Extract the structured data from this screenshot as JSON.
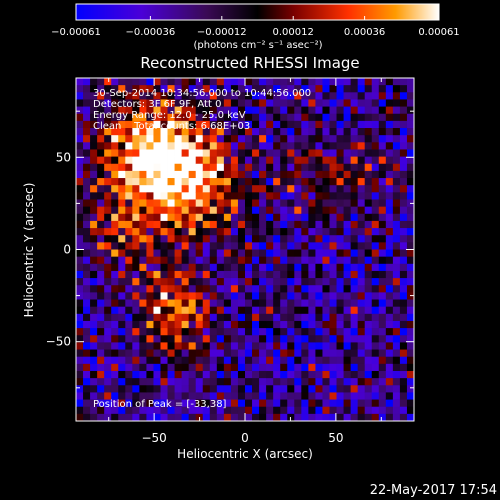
{
  "chart_data": {
    "type": "heatmap",
    "title": "Reconstructed RHESSI Image",
    "xlabel": "Heliocentric X (arcsec)",
    "ylabel": "Heliocentric Y (arcsec)",
    "xlim": [
      -93,
      93
    ],
    "ylim": [
      -93,
      93
    ],
    "x_ticks": [
      -50,
      0,
      50
    ],
    "y_ticks": [
      -50,
      0,
      50
    ],
    "x_tick_labels": [
      "−50",
      "0",
      "50"
    ],
    "y_tick_labels": [
      "−50",
      "0",
      "50"
    ],
    "colorbar": {
      "units": "(photons cm⁻² s⁻¹ asec⁻²)",
      "min": -0.00061,
      "max": 0.00061,
      "ticks": [
        -0.00061,
        -0.00036,
        -0.00012,
        0.00012,
        0.00036,
        0.00061
      ],
      "tick_labels": [
        "−0.00061",
        "−0.00036",
        "−0.00012",
        "0.00012",
        "0.00036",
        "0.00061"
      ]
    },
    "annotations": [
      "30-Sep-2014 10:34:56.000 to 10:44:56.000",
      "Detectors: 3F 6F 9F, Att 0",
      "Energy Range: 12.0 - 25.0 keV",
      "Clean    Total counts: 6.68E+03"
    ],
    "peak_label": "Position of Peak = [-33,38]",
    "peak_position": [
      -33,
      38
    ],
    "colors": {
      "background": "#000000",
      "text": "#ffffff",
      "colormap": [
        "#0000ff",
        "#5000b0",
        "#3c0a4c",
        "#000000",
        "#8c0000",
        "#ff3000",
        "#ff9a00",
        "#ffffff"
      ]
    }
  },
  "footer": {
    "date": "22-May-2017 17:54"
  }
}
